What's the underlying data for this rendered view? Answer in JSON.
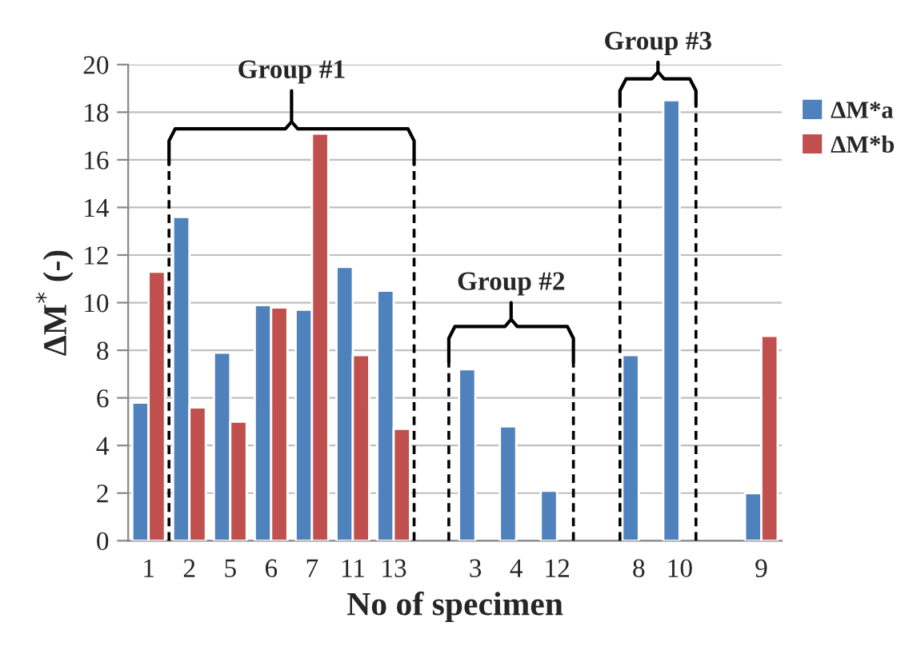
{
  "chart_data": {
    "type": "bar",
    "categories": [
      "1",
      "2",
      "5",
      "6",
      "7",
      "11",
      "13",
      null,
      "3",
      "4",
      "12",
      null,
      "8",
      "10",
      null,
      "9"
    ],
    "series": [
      {
        "name": "ΔM*a",
        "color": "#4f81bd",
        "values": [
          5.8,
          13.6,
          7.9,
          9.9,
          9.7,
          11.5,
          10.5,
          null,
          7.2,
          4.8,
          2.1,
          null,
          7.8,
          18.5,
          null,
          2.0
        ]
      },
      {
        "name": "ΔM*b",
        "color": "#c0504d",
        "values": [
          11.3,
          5.6,
          5.0,
          9.8,
          17.1,
          7.8,
          4.7,
          null,
          null,
          null,
          null,
          null,
          null,
          null,
          null,
          8.6
        ]
      }
    ],
    "xlabel": "No of specimen",
    "ylabel": "ΔM$^{*}$ (-)",
    "ylim": [
      0,
      20
    ],
    "yticks": [
      0,
      2,
      4,
      6,
      8,
      10,
      12,
      14,
      16,
      18,
      20
    ],
    "grid": "y",
    "legend": "top right",
    "annotations": [
      "Group #1",
      "Group #2",
      "Group #3"
    ]
  }
}
